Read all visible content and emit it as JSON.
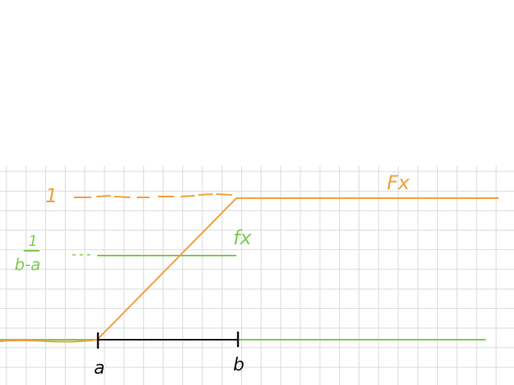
{
  "colors": {
    "background": "#ffffff",
    "grid": "#d9dbe0",
    "cdf": "#f0a040",
    "pdf": "#7ccc52",
    "axis": "#111111"
  },
  "labels": {
    "cdf_level": "1",
    "pdf_level_numerator": "1",
    "pdf_level_denominator": "b-a",
    "cdf_name": "Fx",
    "pdf_name": "fx",
    "point_a": "a",
    "point_b": "b"
  }
}
